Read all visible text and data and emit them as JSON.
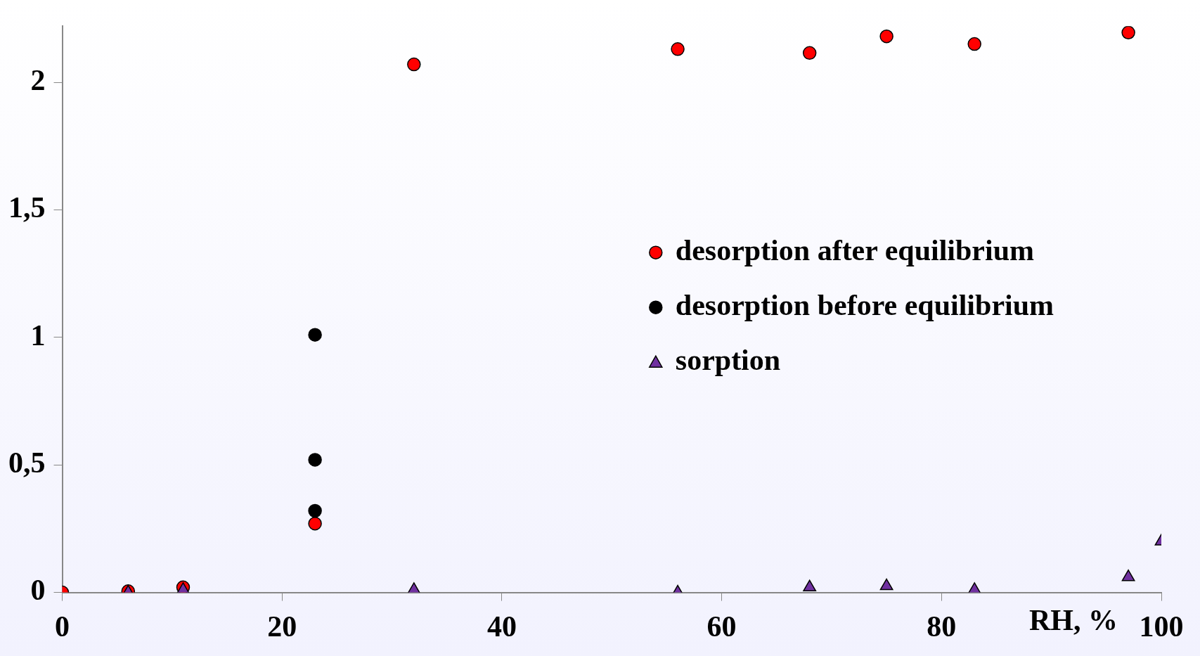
{
  "chart_data": {
    "type": "scatter",
    "xlabel": "RH, %",
    "xlim": [
      0,
      100
    ],
    "xticks": [
      0,
      20,
      40,
      60,
      80,
      100
    ],
    "ylim": [
      0,
      2.22
    ],
    "yticks": [
      {
        "value": 0,
        "label": "0"
      },
      {
        "value": 0.5,
        "label": "0,5"
      },
      {
        "value": 1,
        "label": "1"
      },
      {
        "value": 1.5,
        "label": "1,5"
      },
      {
        "value": 2,
        "label": "2"
      }
    ],
    "grid": false,
    "legend": "right",
    "series": [
      {
        "name": "desorption after equilibrium",
        "color": "#ff0000",
        "marker": "circle",
        "x": [
          0,
          6,
          11,
          23,
          32,
          56,
          68,
          75,
          83,
          97
        ],
        "values": [
          0,
          0.005,
          0.02,
          0.27,
          2.07,
          2.13,
          2.115,
          2.18,
          2.15,
          2.195
        ]
      },
      {
        "name": "desorption before equilibrium",
        "color": "#000000",
        "marker": "circle",
        "x": [
          23,
          23,
          23
        ],
        "values": [
          1.01,
          0.52,
          0.32
        ]
      },
      {
        "name": "sorption",
        "color": "#7030a0",
        "marker": "triangle",
        "x": [
          6,
          11,
          32,
          56,
          68,
          75,
          83,
          97,
          100
        ],
        "values": [
          0,
          0.01,
          0.01,
          0,
          0.02,
          0.025,
          0.01,
          0.06,
          0.2
        ]
      }
    ]
  }
}
